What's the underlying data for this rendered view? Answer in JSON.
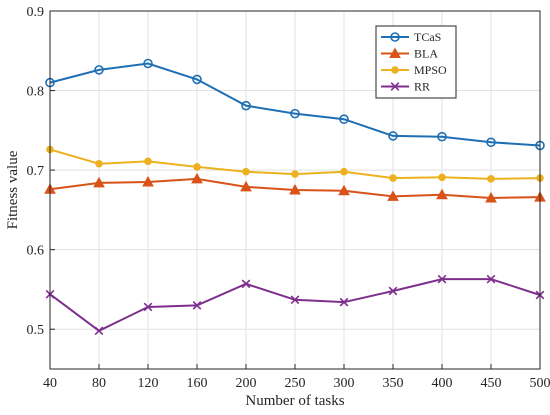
{
  "chart_data": {
    "type": "line",
    "xlabel": "Number of tasks",
    "ylabel": "Fitness value",
    "categories": [
      "40",
      "80",
      "120",
      "160",
      "200",
      "250",
      "300",
      "350",
      "400",
      "450",
      "500"
    ],
    "ylim": [
      0.45,
      0.9
    ],
    "yticks": [
      "0.5",
      "0.6",
      "0.7",
      "0.8",
      "0.9"
    ],
    "grid": true,
    "legend_position": "top-right",
    "series": [
      {
        "name": "TCaS",
        "color": "#1f6fb5",
        "marker": "circle",
        "values": [
          0.81,
          0.826,
          0.834,
          0.814,
          0.781,
          0.771,
          0.764,
          0.743,
          0.742,
          0.735,
          0.731
        ]
      },
      {
        "name": "BLA",
        "color": "#d95319",
        "marker": "triangle",
        "values": [
          0.676,
          0.684,
          0.685,
          0.689,
          0.679,
          0.675,
          0.674,
          0.667,
          0.669,
          0.665,
          0.666
        ]
      },
      {
        "name": "MPSO",
        "color": "#edb120",
        "marker": "dot",
        "values": [
          0.726,
          0.708,
          0.711,
          0.704,
          0.698,
          0.695,
          0.698,
          0.69,
          0.691,
          0.689,
          0.69
        ]
      },
      {
        "name": "RR",
        "color": "#7e2f8e",
        "marker": "x",
        "values": [
          0.544,
          0.498,
          0.528,
          0.53,
          0.557,
          0.537,
          0.534,
          0.548,
          0.563,
          0.563,
          0.543
        ]
      }
    ]
  }
}
